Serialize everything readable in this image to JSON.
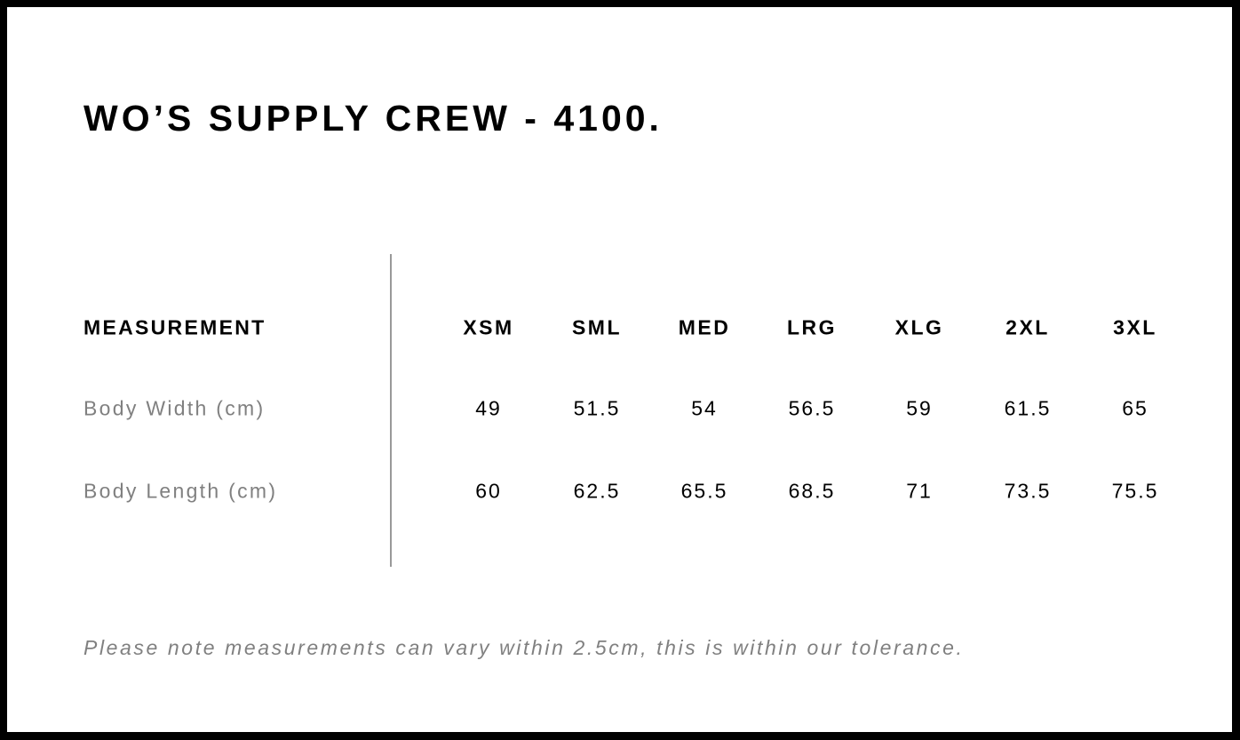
{
  "title": "WO’S SUPPLY CREW - 4100.",
  "table": {
    "header_label": "MEASUREMENT",
    "sizes": [
      "XSM",
      "SML",
      "MED",
      "LRG",
      "XLG",
      "2XL",
      "3XL"
    ],
    "rows": [
      {
        "label": "Body Width (cm)",
        "values": [
          "49",
          "51.5",
          "54",
          "56.5",
          "59",
          "61.5",
          "65"
        ]
      },
      {
        "label": "Body Length (cm)",
        "values": [
          "60",
          "62.5",
          "65.5",
          "68.5",
          "71",
          "73.5",
          "75.5"
        ]
      }
    ]
  },
  "note": "Please note measurements can vary within 2.5cm, this is within our tolerance.",
  "colors": {
    "frame": "#000000",
    "label_gray": "#808080",
    "divider": "#999999"
  }
}
